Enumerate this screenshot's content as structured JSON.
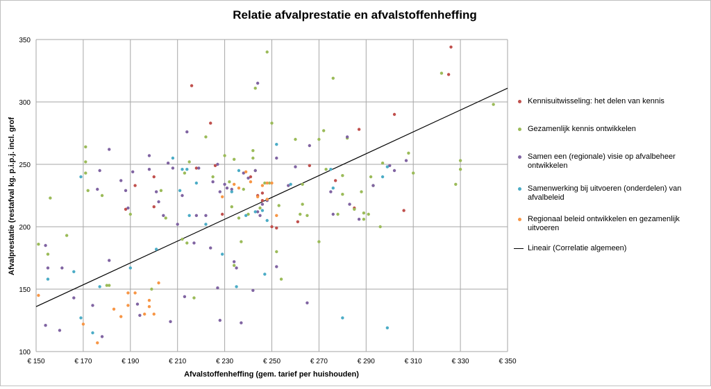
{
  "chart_data": {
    "type": "scatter",
    "title": "Relatie afvalprestatie en afvalstoffenheffing",
    "xlabel": "Afvalstoffenheffing (gem. tarief per huishouden)",
    "ylabel": "Afvalprestatie (restafval kg. p.i.p.j. incl. grof",
    "xlim": [
      150,
      350
    ],
    "ylim": [
      100,
      350
    ],
    "x_ticks": [
      "€ 150",
      "€ 170",
      "€ 190",
      "€ 210",
      "€ 230",
      "€ 250",
      "€ 270",
      "€ 290",
      "€ 310",
      "€ 330",
      "€ 350"
    ],
    "y_ticks": [
      "100",
      "150",
      "200",
      "250",
      "300",
      "350"
    ],
    "grid": true,
    "legend_position": "right",
    "series": [
      {
        "name": "Kennisuitwisseling: het delen van kennis",
        "color": "#c0504d",
        "points": [
          [
            216,
            313
          ],
          [
            224,
            283
          ],
          [
            250,
            200
          ],
          [
            252,
            199
          ],
          [
            261,
            204
          ],
          [
            266,
            249
          ],
          [
            277,
            237
          ],
          [
            285,
            215
          ],
          [
            287,
            278
          ],
          [
            302,
            290
          ],
          [
            306,
            213
          ],
          [
            325,
            322
          ],
          [
            326,
            344
          ],
          [
            192,
            233
          ],
          [
            200,
            240
          ],
          [
            218,
            247
          ],
          [
            226,
            249
          ],
          [
            244,
            225
          ],
          [
            246,
            221
          ],
          [
            246,
            227
          ],
          [
            241,
            240
          ],
          [
            229,
            210
          ],
          [
            188,
            214
          ],
          [
            200,
            216
          ]
        ]
      },
      {
        "name": "Gezamenlijk kennis ontwikkelen",
        "color": "#9bbb59",
        "points": [
          [
            151,
            186
          ],
          [
            155,
            178
          ],
          [
            156,
            223
          ],
          [
            163,
            193
          ],
          [
            171,
            264
          ],
          [
            171,
            252
          ],
          [
            171,
            243
          ],
          [
            172,
            229
          ],
          [
            178,
            225
          ],
          [
            180,
            153
          ],
          [
            181,
            153
          ],
          [
            190,
            210
          ],
          [
            199,
            150
          ],
          [
            203,
            229
          ],
          [
            205,
            207
          ],
          [
            212,
            190
          ],
          [
            213,
            243
          ],
          [
            214,
            187
          ],
          [
            215,
            252
          ],
          [
            217,
            143
          ],
          [
            222,
            272
          ],
          [
            225,
            240
          ],
          [
            230,
            257
          ],
          [
            232,
            236
          ],
          [
            233,
            216
          ],
          [
            234,
            169
          ],
          [
            234,
            254
          ],
          [
            236,
            207
          ],
          [
            237,
            188
          ],
          [
            238,
            230
          ],
          [
            240,
            210
          ],
          [
            242,
            255
          ],
          [
            242,
            261
          ],
          [
            243,
            311
          ],
          [
            243,
            245
          ],
          [
            245,
            215
          ],
          [
            247,
            235
          ],
          [
            248,
            340
          ],
          [
            249,
            235
          ],
          [
            250,
            283
          ],
          [
            252,
            180
          ],
          [
            253,
            217
          ],
          [
            254,
            158
          ],
          [
            260,
            270
          ],
          [
            262,
            210
          ],
          [
            263,
            234
          ],
          [
            263,
            218
          ],
          [
            265,
            209
          ],
          [
            270,
            270
          ],
          [
            272,
            277
          ],
          [
            273,
            246
          ],
          [
            276,
            319
          ],
          [
            278,
            210
          ],
          [
            280,
            226
          ],
          [
            280,
            241
          ],
          [
            282,
            271
          ],
          [
            285,
            214
          ],
          [
            288,
            228
          ],
          [
            289,
            211
          ],
          [
            289,
            206
          ],
          [
            291,
            210
          ],
          [
            292,
            240
          ],
          [
            293,
            233
          ],
          [
            296,
            200
          ],
          [
            297,
            251
          ],
          [
            308,
            259
          ],
          [
            310,
            243
          ],
          [
            322,
            323
          ],
          [
            328,
            234
          ],
          [
            330,
            253
          ],
          [
            330,
            246
          ],
          [
            344,
            298
          ],
          [
            270,
            188
          ]
        ]
      },
      {
        "name": "Samen een (regionale) visie op afvalbeheer ontwikkelen",
        "color": "#8064a2",
        "points": [
          [
            154,
            121
          ],
          [
            154,
            185
          ],
          [
            155,
            167
          ],
          [
            160,
            117
          ],
          [
            161,
            167
          ],
          [
            166,
            143
          ],
          [
            174,
            137
          ],
          [
            176,
            230
          ],
          [
            177,
            245
          ],
          [
            178,
            112
          ],
          [
            181,
            262
          ],
          [
            181,
            173
          ],
          [
            186,
            237
          ],
          [
            188,
            229
          ],
          [
            189,
            215
          ],
          [
            191,
            244
          ],
          [
            193,
            138
          ],
          [
            194,
            129
          ],
          [
            198,
            257
          ],
          [
            198,
            246
          ],
          [
            201,
            228
          ],
          [
            202,
            220
          ],
          [
            204,
            209
          ],
          [
            206,
            251
          ],
          [
            207,
            124
          ],
          [
            208,
            247
          ],
          [
            212,
            225
          ],
          [
            213,
            144
          ],
          [
            214,
            276
          ],
          [
            217,
            187
          ],
          [
            218,
            209
          ],
          [
            219,
            247
          ],
          [
            222,
            209
          ],
          [
            224,
            183
          ],
          [
            225,
            236
          ],
          [
            227,
            151
          ],
          [
            227,
            250
          ],
          [
            228,
            125
          ],
          [
            228,
            228
          ],
          [
            230,
            234
          ],
          [
            231,
            231
          ],
          [
            233,
            230
          ],
          [
            234,
            172
          ],
          [
            235,
            167
          ],
          [
            237,
            123
          ],
          [
            238,
            243
          ],
          [
            240,
            239
          ],
          [
            242,
            149
          ],
          [
            243,
            245
          ],
          [
            244,
            315
          ],
          [
            244,
            212
          ],
          [
            245,
            209
          ],
          [
            246,
            218
          ],
          [
            248,
            221
          ],
          [
            252,
            255
          ],
          [
            252,
            168
          ],
          [
            257,
            233
          ],
          [
            260,
            248
          ],
          [
            265,
            139
          ],
          [
            266,
            265
          ],
          [
            275,
            228
          ],
          [
            276,
            210
          ],
          [
            282,
            272
          ],
          [
            283,
            218
          ],
          [
            287,
            206
          ],
          [
            293,
            233
          ],
          [
            300,
            249
          ],
          [
            302,
            245
          ],
          [
            307,
            253
          ],
          [
            210,
            202
          ]
        ]
      },
      {
        "name": "Samenwerking bij uitvoeren (onderdelen) van afvalbeleid",
        "color": "#4bacc6",
        "points": [
          [
            155,
            158
          ],
          [
            166,
            164
          ],
          [
            169,
            240
          ],
          [
            169,
            127
          ],
          [
            174,
            115
          ],
          [
            177,
            152
          ],
          [
            190,
            167
          ],
          [
            201,
            182
          ],
          [
            208,
            255
          ],
          [
            211,
            229
          ],
          [
            212,
            246
          ],
          [
            215,
            209
          ],
          [
            222,
            202
          ],
          [
            229,
            178
          ],
          [
            233,
            228
          ],
          [
            235,
            152
          ],
          [
            236,
            245
          ],
          [
            239,
            209
          ],
          [
            243,
            212
          ],
          [
            246,
            213
          ],
          [
            247,
            162
          ],
          [
            248,
            205
          ],
          [
            252,
            266
          ],
          [
            258,
            234
          ],
          [
            275,
            246
          ],
          [
            276,
            231
          ],
          [
            280,
            127
          ],
          [
            297,
            240
          ],
          [
            299,
            119
          ],
          [
            299,
            248
          ],
          [
            214,
            246
          ],
          [
            218,
            235
          ]
        ]
      },
      {
        "name": "Regionaal beleid ontwikkelen en gezamenlijk uitvoeren",
        "color": "#f79646",
        "points": [
          [
            151,
            145
          ],
          [
            170,
            122
          ],
          [
            176,
            107
          ],
          [
            183,
            134
          ],
          [
            186,
            128
          ],
          [
            189,
            147
          ],
          [
            189,
            137
          ],
          [
            192,
            147
          ],
          [
            196,
            130
          ],
          [
            198,
            136
          ],
          [
            198,
            141
          ],
          [
            200,
            130
          ],
          [
            202,
            155
          ],
          [
            236,
            231
          ],
          [
            241,
            236
          ],
          [
            244,
            224
          ],
          [
            246,
            233
          ],
          [
            248,
            222
          ],
          [
            248,
            235
          ],
          [
            250,
            235
          ],
          [
            252,
            209
          ],
          [
            234,
            234
          ],
          [
            239,
            244
          ],
          [
            229,
            224
          ]
        ]
      }
    ],
    "trendline": {
      "name": "Lineair (Correlatie algemeen)",
      "color": "#000000",
      "x": [
        150,
        350
      ],
      "y": [
        136,
        311
      ]
    }
  }
}
